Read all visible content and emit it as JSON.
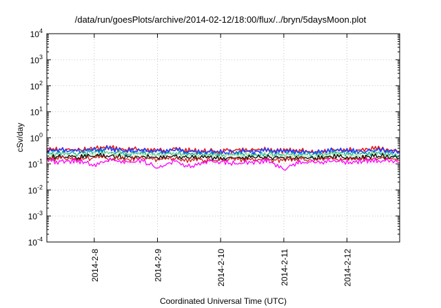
{
  "chart_data": {
    "type": "line",
    "title": "/data/run/goesPlots/archive/2014-02-12/18:00/flux/../bryn/5daysMoon.plot",
    "xlabel": "Coordinated Universal Time (UTC)",
    "ylabel": "cSv/day",
    "yscale": "log",
    "ylim": [
      0.0001,
      10000
    ],
    "y_ticks": [
      {
        "base": "10",
        "exp": "-4"
      },
      {
        "base": "10",
        "exp": "-3"
      },
      {
        "base": "10",
        "exp": "-2"
      },
      {
        "base": "10",
        "exp": "-1"
      },
      {
        "base": "10",
        "exp": "0"
      },
      {
        "base": "10",
        "exp": "1"
      },
      {
        "base": "10",
        "exp": "2"
      },
      {
        "base": "10",
        "exp": "3"
      },
      {
        "base": "10",
        "exp": "4"
      }
    ],
    "xlim": [
      "2014-02-07T06:00",
      "2014-02-12T20:00"
    ],
    "x_ticks": [
      {
        "label": "2014-2-8",
        "value": "2014-02-08T00:00"
      },
      {
        "label": "2014-2-9",
        "value": "2014-02-09T00:00"
      },
      {
        "label": "2014-2-10",
        "value": "2014-02-10T00:00"
      },
      {
        "label": "2014-2-11",
        "value": "2014-02-11T00:00"
      },
      {
        "label": "2014-2-12",
        "value": "2014-02-12T00:00"
      }
    ],
    "grid": true,
    "series": [
      {
        "color": "#e41a1c",
        "baseline": 0.33,
        "x": [
          "2014-02-07T06:00",
          "2014-02-07T12:00",
          "2014-02-07T18:00",
          "2014-02-08T00:00",
          "2014-02-08T06:00",
          "2014-02-08T12:00",
          "2014-02-08T18:00",
          "2014-02-09T00:00",
          "2014-02-09T06:00",
          "2014-02-09T12:00",
          "2014-02-09T18:00",
          "2014-02-10T00:00",
          "2014-02-10T06:00",
          "2014-02-10T12:00",
          "2014-02-10T18:00",
          "2014-02-11T00:00",
          "2014-02-11T06:00",
          "2014-02-11T12:00",
          "2014-02-11T18:00",
          "2014-02-12T00:00",
          "2014-02-12T06:00",
          "2014-02-12T12:00",
          "2014-02-12T20:00"
        ],
        "y": [
          0.34,
          0.36,
          0.33,
          0.4,
          0.42,
          0.35,
          0.36,
          0.33,
          0.38,
          0.32,
          0.31,
          0.3,
          0.33,
          0.32,
          0.35,
          0.31,
          0.33,
          0.3,
          0.36,
          0.34,
          0.33,
          0.4,
          0.3
        ]
      },
      {
        "color": "#2040ff",
        "baseline": 0.3,
        "x": [
          "2014-02-07T06:00",
          "2014-02-07T12:00",
          "2014-02-07T18:00",
          "2014-02-08T00:00",
          "2014-02-08T06:00",
          "2014-02-08T12:00",
          "2014-02-08T18:00",
          "2014-02-09T00:00",
          "2014-02-09T06:00",
          "2014-02-09T12:00",
          "2014-02-09T18:00",
          "2014-02-10T00:00",
          "2014-02-10T06:00",
          "2014-02-10T12:00",
          "2014-02-10T18:00",
          "2014-02-11T00:00",
          "2014-02-11T06:00",
          "2014-02-11T12:00",
          "2014-02-11T18:00",
          "2014-02-12T00:00",
          "2014-02-12T06:00",
          "2014-02-12T12:00",
          "2014-02-12T20:00"
        ],
        "y": [
          0.3,
          0.33,
          0.3,
          0.36,
          0.38,
          0.32,
          0.33,
          0.3,
          0.34,
          0.29,
          0.28,
          0.27,
          0.3,
          0.29,
          0.32,
          0.28,
          0.3,
          0.27,
          0.33,
          0.31,
          0.3,
          0.36,
          0.27
        ]
      },
      {
        "color": "#00a0a0",
        "baseline": 0.24,
        "x": [
          "2014-02-07T06:00",
          "2014-02-07T12:00",
          "2014-02-07T18:00",
          "2014-02-08T00:00",
          "2014-02-08T06:00",
          "2014-02-08T12:00",
          "2014-02-08T18:00",
          "2014-02-09T00:00",
          "2014-02-09T06:00",
          "2014-02-09T12:00",
          "2014-02-09T18:00",
          "2014-02-10T00:00",
          "2014-02-10T06:00",
          "2014-02-10T12:00",
          "2014-02-10T18:00",
          "2014-02-11T00:00",
          "2014-02-11T06:00",
          "2014-02-11T12:00",
          "2014-02-11T18:00",
          "2014-02-12T00:00",
          "2014-02-12T06:00",
          "2014-02-12T12:00",
          "2014-02-12T20:00"
        ],
        "y": [
          0.24,
          0.26,
          0.24,
          0.28,
          0.29,
          0.25,
          0.26,
          0.24,
          0.27,
          0.23,
          0.22,
          0.22,
          0.24,
          0.23,
          0.25,
          0.22,
          0.24,
          0.22,
          0.26,
          0.25,
          0.24,
          0.28,
          0.22
        ]
      },
      {
        "color": "#a0e0a0",
        "baseline": 0.22,
        "x": [
          "2014-02-07T06:00",
          "2014-02-07T12:00",
          "2014-02-07T18:00",
          "2014-02-08T00:00",
          "2014-02-08T06:00",
          "2014-02-08T12:00",
          "2014-02-08T18:00",
          "2014-02-09T00:00",
          "2014-02-09T06:00",
          "2014-02-09T12:00",
          "2014-02-09T18:00",
          "2014-02-10T00:00",
          "2014-02-10T06:00",
          "2014-02-10T12:00",
          "2014-02-10T18:00",
          "2014-02-11T00:00",
          "2014-02-11T06:00",
          "2014-02-11T12:00",
          "2014-02-11T18:00",
          "2014-02-12T00:00",
          "2014-02-12T06:00",
          "2014-02-12T12:00",
          "2014-02-12T20:00"
        ],
        "y": [
          0.22,
          0.23,
          0.22,
          0.25,
          0.26,
          0.23,
          0.23,
          0.22,
          0.24,
          0.21,
          0.21,
          0.2,
          0.22,
          0.21,
          0.23,
          0.21,
          0.22,
          0.2,
          0.23,
          0.22,
          0.22,
          0.25,
          0.2
        ]
      },
      {
        "color": "#000000",
        "baseline": 0.18,
        "x": [
          "2014-02-07T06:00",
          "2014-02-07T12:00",
          "2014-02-07T18:00",
          "2014-02-08T00:00",
          "2014-02-08T06:00",
          "2014-02-08T12:00",
          "2014-02-08T18:00",
          "2014-02-09T00:00",
          "2014-02-09T06:00",
          "2014-02-09T12:00",
          "2014-02-09T18:00",
          "2014-02-10T00:00",
          "2014-02-10T06:00",
          "2014-02-10T12:00",
          "2014-02-10T18:00",
          "2014-02-11T00:00",
          "2014-02-11T06:00",
          "2014-02-11T12:00",
          "2014-02-11T18:00",
          "2014-02-12T00:00",
          "2014-02-12T06:00",
          "2014-02-12T12:00",
          "2014-02-12T20:00"
        ],
        "y": [
          0.18,
          0.19,
          0.18,
          0.2,
          0.21,
          0.18,
          0.19,
          0.18,
          0.19,
          0.17,
          0.17,
          0.17,
          0.18,
          0.17,
          0.18,
          0.17,
          0.18,
          0.17,
          0.19,
          0.18,
          0.18,
          0.2,
          0.17
        ]
      },
      {
        "color": "#cc2020",
        "baseline": 0.15,
        "x": [
          "2014-02-07T06:00",
          "2014-02-07T12:00",
          "2014-02-07T18:00",
          "2014-02-08T00:00",
          "2014-02-08T06:00",
          "2014-02-08T12:00",
          "2014-02-08T18:00",
          "2014-02-09T00:00",
          "2014-02-09T06:00",
          "2014-02-09T12:00",
          "2014-02-09T18:00",
          "2014-02-10T00:00",
          "2014-02-10T06:00",
          "2014-02-10T12:00",
          "2014-02-10T18:00",
          "2014-02-11T00:00",
          "2014-02-11T06:00",
          "2014-02-11T12:00",
          "2014-02-11T18:00",
          "2014-02-12T00:00",
          "2014-02-12T06:00",
          "2014-02-12T12:00",
          "2014-02-12T20:00"
        ],
        "y": [
          0.15,
          0.16,
          0.15,
          0.17,
          0.17,
          0.15,
          0.16,
          0.15,
          0.16,
          0.14,
          0.14,
          0.14,
          0.15,
          0.14,
          0.15,
          0.14,
          0.15,
          0.14,
          0.16,
          0.15,
          0.15,
          0.17,
          0.14
        ]
      },
      {
        "color": "#ff00ff",
        "baseline": 0.13,
        "x": [
          "2014-02-07T06:00",
          "2014-02-07T12:00",
          "2014-02-07T18:00",
          "2014-02-08T00:00",
          "2014-02-08T06:00",
          "2014-02-08T12:00",
          "2014-02-08T18:00",
          "2014-02-09T00:00",
          "2014-02-09T06:00",
          "2014-02-09T12:00",
          "2014-02-09T18:00",
          "2014-02-10T00:00",
          "2014-02-10T06:00",
          "2014-02-10T12:00",
          "2014-02-10T18:00",
          "2014-02-11T00:00",
          "2014-02-11T06:00",
          "2014-02-11T12:00",
          "2014-02-11T18:00",
          "2014-02-12T00:00",
          "2014-02-12T06:00",
          "2014-02-12T12:00",
          "2014-02-12T20:00"
        ],
        "y": [
          0.13,
          0.12,
          0.13,
          0.09,
          0.14,
          0.11,
          0.13,
          0.07,
          0.13,
          0.08,
          0.12,
          0.12,
          0.1,
          0.12,
          0.13,
          0.06,
          0.12,
          0.11,
          0.13,
          0.12,
          0.13,
          0.14,
          0.11
        ]
      }
    ]
  }
}
